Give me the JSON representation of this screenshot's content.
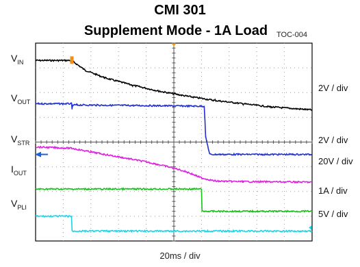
{
  "chart_data": {
    "type": "line",
    "title": "CMI 301",
    "subtitle": "Supplement Mode - 1A Load",
    "figure_id": "TOC-004",
    "xlabel": "20ms / div",
    "grid": true,
    "x_divisions": 10,
    "y_divisions": 8,
    "x_unit": "div",
    "y_unit": "div",
    "channels": [
      {
        "name": "V",
        "sub": "IN",
        "color": "#000000",
        "scale": "2V / div",
        "x": [
          0,
          1.3,
          1.8,
          2.5,
          3.5,
          4.5,
          5.5,
          6.5,
          7.5,
          8.5,
          10
        ],
        "y": [
          7.3,
          7.3,
          6.9,
          6.6,
          6.3,
          6.05,
          5.85,
          5.68,
          5.55,
          5.42,
          5.3
        ]
      },
      {
        "name": "V",
        "sub": "OUT",
        "color": "#1f2fd0",
        "scale": "2V / div",
        "x": [
          0,
          1.3,
          1.32,
          1.36,
          1.5,
          6.1,
          6.15,
          6.3,
          10
        ],
        "y": [
          5.55,
          5.55,
          5.35,
          5.5,
          5.5,
          5.45,
          4.2,
          3.5,
          3.5
        ]
      },
      {
        "name": "V",
        "sub": "STR",
        "color": "#e020e0",
        "scale": "20V / div",
        "x": [
          0,
          1.3,
          2.0,
          3.0,
          4.0,
          5.0,
          5.5,
          6.0,
          6.5,
          7.5,
          10
        ],
        "y": [
          3.8,
          3.75,
          3.6,
          3.4,
          3.2,
          2.95,
          2.78,
          2.55,
          2.42,
          2.4,
          2.38
        ]
      },
      {
        "name": "I",
        "sub": "OUT",
        "color": "#18c018",
        "scale": "1A / div",
        "x": [
          0,
          6.0,
          6.02,
          10
        ],
        "y": [
          2.1,
          2.1,
          1.2,
          1.2
        ]
      },
      {
        "name": "V",
        "sub": "PLI",
        "color": "#18d4e8",
        "scale": "5V / div",
        "x": [
          0,
          1.3,
          1.32,
          10
        ],
        "y": [
          1.0,
          1.0,
          0.4,
          0.4
        ]
      }
    ]
  }
}
